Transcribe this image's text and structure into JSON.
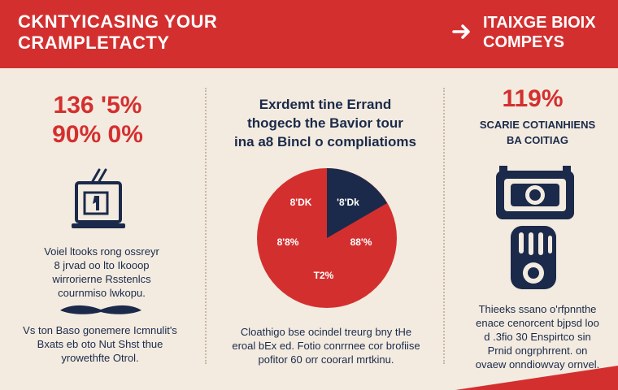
{
  "header": {
    "title_line1": "CKNTYICASING YOUR",
    "title_line2": "CRAMPLETACTY",
    "right_line1": "ITAIXGE BIOIX",
    "right_line2": "COMPEYS"
  },
  "left": {
    "stat_line1": "136 '5%",
    "stat_line2": "90% 0%",
    "text1_lines": [
      "Voiel ltooks rong ossreyr",
      "8 jrvad oo lto Ikooop",
      "wirrorierne Rsstenlcs",
      "cournmiso lwkopu."
    ],
    "text2_lines": [
      "Vs ton Baso gonemere Icmnulit's",
      "Bxats eb oto Nut Shst thue",
      "yrowethfte Otrol."
    ]
  },
  "center": {
    "heading_lines": [
      "Exrdemt tine Errand",
      "thogecb the Bavior tour",
      "ina a8 Bincl o compliatioms"
    ],
    "pie_labels": [
      "8'DK",
      "'8'Dk",
      "8'8%",
      "88'%",
      "T2%"
    ],
    "text_lines": [
      "Cloathigo bse ocindel treurg bny tHe",
      "eroal bEx ed. Fotio conrrnee cor brofiise",
      "pofitor 60 orr coorarl mrtkinu."
    ]
  },
  "right": {
    "stat": "119%",
    "sub_lines": [
      "SCARIE COTIANHIENS",
      "BA COITIAG"
    ],
    "text_lines": [
      "Thieeks ssano o'rfpnnthe",
      "enace cenorcent bjpsd loo",
      "d .3fio 30 Enspirtco sin",
      "Prnid ongrphrrent. on",
      "ovaew onndiowvay ornvel."
    ]
  },
  "colors": {
    "accent": "#d42f2f",
    "navy": "#1b2a4a",
    "background": "#f3ebe0"
  }
}
